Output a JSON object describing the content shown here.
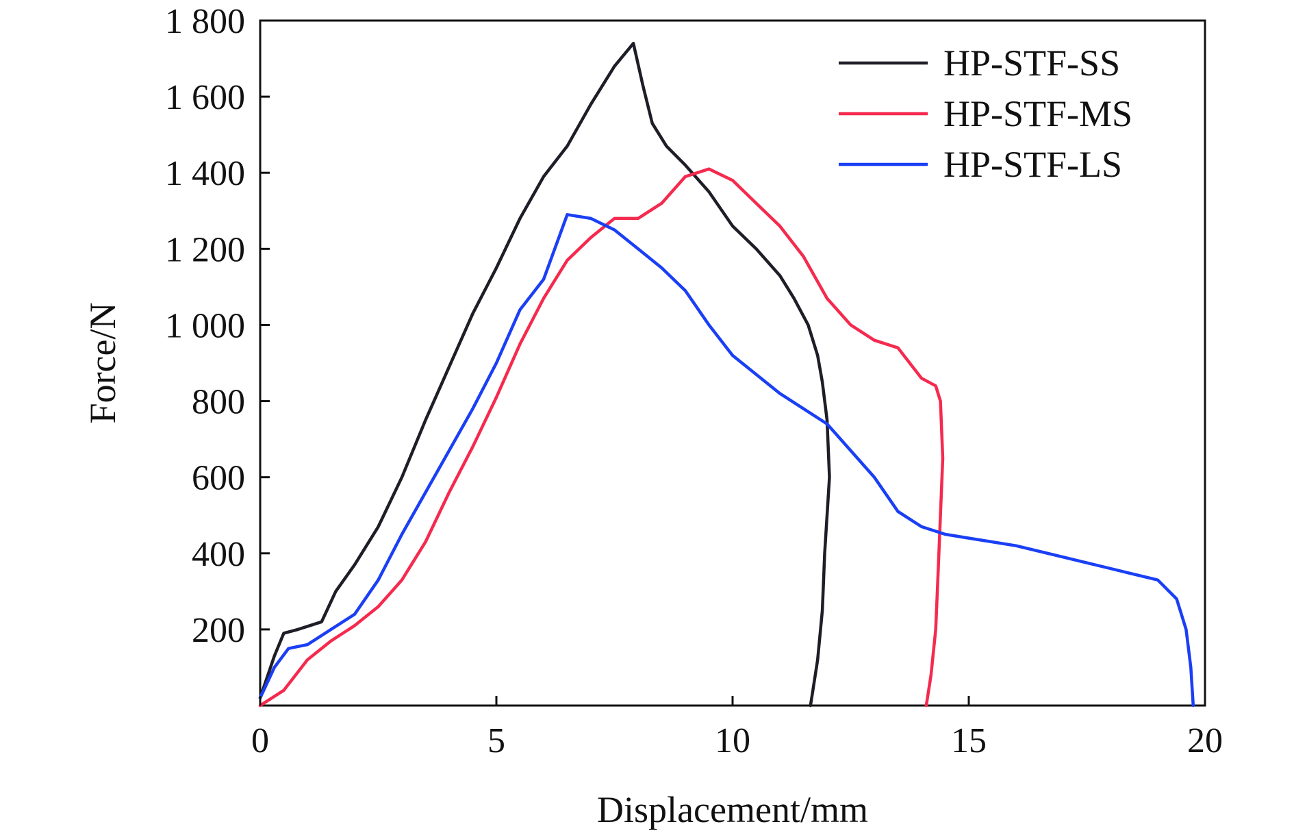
{
  "chart_data": {
    "type": "line",
    "title": "",
    "xlabel": "Displacement/mm",
    "ylabel": "Force/N",
    "xlim": [
      0,
      20
    ],
    "ylim": [
      0,
      1800
    ],
    "x_ticks": [
      0,
      5,
      10,
      15,
      20
    ],
    "x_tick_labels": [
      "0",
      "5",
      "10",
      "15",
      "20"
    ],
    "y_ticks": [
      200,
      400,
      600,
      800,
      1000,
      1200,
      1400,
      1600,
      1800
    ],
    "y_tick_labels": [
      "200",
      "400",
      "600",
      "800",
      "1 000",
      "1 200",
      "1 400",
      "1 600",
      "1 800"
    ],
    "grid": false,
    "legend_position": "top-right",
    "series": [
      {
        "name": "HP-STF-SS",
        "color": "#1e1e28",
        "x": [
          0,
          0.3,
          0.5,
          0.8,
          1.3,
          1.6,
          2.0,
          2.5,
          3.0,
          3.5,
          4.0,
          4.5,
          5.0,
          5.5,
          6.0,
          6.5,
          7.0,
          7.5,
          7.9,
          8.1,
          8.3,
          8.6,
          9.0,
          9.5,
          10.0,
          10.5,
          11.0,
          11.3,
          11.6,
          11.8,
          11.9,
          12.0,
          12.05,
          11.95,
          11.9,
          11.8,
          11.7,
          11.65
        ],
        "y": [
          20,
          130,
          190,
          200,
          220,
          300,
          370,
          470,
          600,
          750,
          890,
          1030,
          1150,
          1280,
          1390,
          1470,
          1580,
          1680,
          1740,
          1630,
          1530,
          1470,
          1420,
          1350,
          1260,
          1200,
          1130,
          1070,
          1000,
          920,
          850,
          750,
          600,
          400,
          250,
          120,
          40,
          0
        ]
      },
      {
        "name": "HP-STF-MS",
        "color": "#f52a4e",
        "x": [
          0,
          0.5,
          1.0,
          1.5,
          2.0,
          2.5,
          3.0,
          3.5,
          4.0,
          4.5,
          5.0,
          5.5,
          6.0,
          6.5,
          7.0,
          7.5,
          8.0,
          8.5,
          9.0,
          9.5,
          10.0,
          10.5,
          11.0,
          11.5,
          12.0,
          12.5,
          13.0,
          13.5,
          14.0,
          14.3,
          14.4,
          14.45,
          14.4,
          14.35,
          14.3,
          14.2,
          14.1
        ],
        "y": [
          0,
          40,
          120,
          170,
          210,
          260,
          330,
          430,
          560,
          680,
          810,
          950,
          1070,
          1170,
          1230,
          1280,
          1280,
          1320,
          1390,
          1410,
          1380,
          1320,
          1260,
          1180,
          1070,
          1000,
          960,
          940,
          860,
          840,
          800,
          650,
          500,
          350,
          200,
          80,
          0
        ]
      },
      {
        "name": "HP-STF-LS",
        "color": "#1a3ff5",
        "x": [
          0,
          0.3,
          0.6,
          1.0,
          1.5,
          2.0,
          2.5,
          3.0,
          3.5,
          4.0,
          4.5,
          5.0,
          5.5,
          6.0,
          6.5,
          7.0,
          7.5,
          8.0,
          8.5,
          9.0,
          9.5,
          10.0,
          11.0,
          12.0,
          13.0,
          13.5,
          14.0,
          14.5,
          15.0,
          16.0,
          17.0,
          18.0,
          19.0,
          19.4,
          19.6,
          19.7,
          19.75
        ],
        "y": [
          20,
          100,
          150,
          160,
          200,
          240,
          330,
          450,
          560,
          670,
          780,
          900,
          1040,
          1120,
          1290,
          1280,
          1250,
          1200,
          1150,
          1090,
          1000,
          920,
          820,
          740,
          600,
          510,
          470,
          450,
          440,
          420,
          390,
          360,
          330,
          280,
          200,
          100,
          0
        ]
      }
    ]
  }
}
